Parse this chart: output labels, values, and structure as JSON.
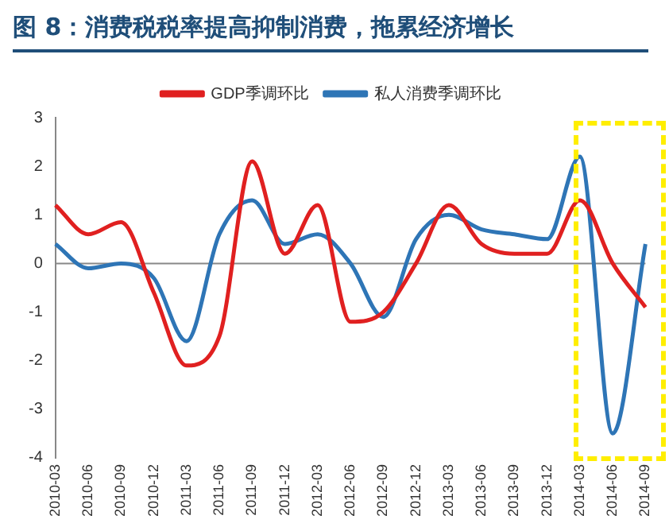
{
  "chart_data": {
    "type": "line",
    "title": "图 8：消费税税率提高抑制消费，拖累经济增长",
    "categories": [
      "2010-03",
      "2010-06",
      "2010-09",
      "2010-12",
      "2011-03",
      "2011-06",
      "2011-09",
      "2011-12",
      "2012-03",
      "2012-06",
      "2012-09",
      "2012-12",
      "2013-03",
      "2013-06",
      "2013-09",
      "2013-12",
      "2014-03",
      "2014-06",
      "2014-09"
    ],
    "series": [
      {
        "name": "GDP季调环比",
        "color": "#e02020",
        "values": [
          1.2,
          0.6,
          0.85,
          -0.6,
          -2.1,
          -1.5,
          2.1,
          0.2,
          1.2,
          -1.2,
          -1.0,
          0.0,
          1.2,
          0.4,
          0.2,
          0.2,
          1.3,
          0.0,
          -0.9
        ]
      },
      {
        "name": "私人消费季调环比",
        "color": "#2e75b6",
        "values": [
          0.4,
          -0.1,
          0.0,
          -0.3,
          -1.6,
          0.6,
          1.3,
          0.4,
          0.6,
          0.0,
          -1.1,
          0.5,
          1.0,
          0.7,
          0.6,
          0.5,
          2.2,
          -3.5,
          0.4
        ]
      }
    ],
    "ref_lines": [
      {
        "axis": "y",
        "value": 0,
        "color": "#888888"
      }
    ],
    "ylim": [
      -4,
      3
    ],
    "yticks": [
      -4,
      -3,
      -2,
      -1,
      0,
      1,
      2,
      3
    ],
    "grid": false,
    "legend": "top",
    "marker": "none",
    "line_style": "solid"
  }
}
